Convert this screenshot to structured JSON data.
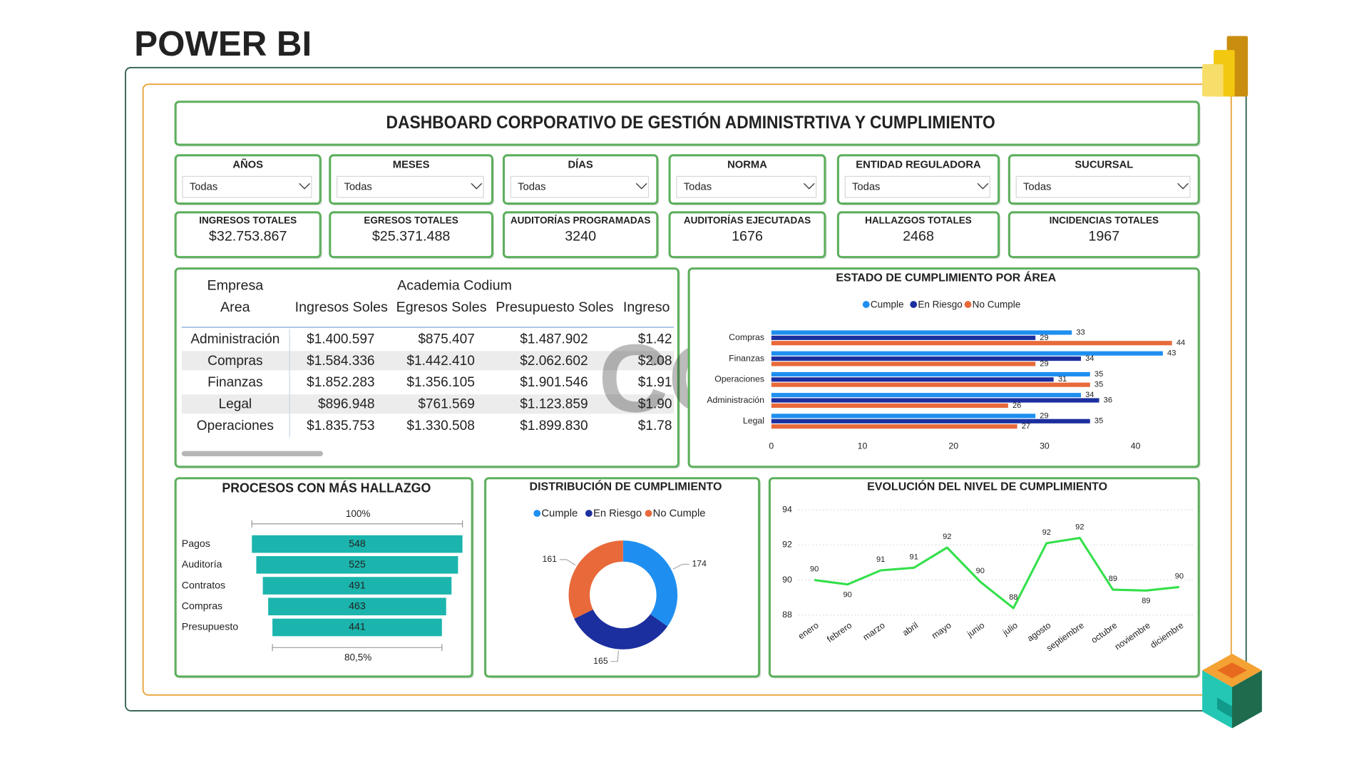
{
  "header": {
    "title": "POWER BI"
  },
  "dashboard": {
    "title": "DASHBOARD CORPORATIVO DE GESTIÓN ADMINISTRTIVA Y CUMPLIMIENTO"
  },
  "slicers": [
    {
      "label": "AÑOS",
      "value": "Todas"
    },
    {
      "label": "MESES",
      "value": "Todas"
    },
    {
      "label": "DÍAS",
      "value": "Todas"
    },
    {
      "label": "NORMA",
      "value": "Todas"
    },
    {
      "label": "ENTIDAD REGULADORA",
      "value": "Todas"
    },
    {
      "label": "SUCURSAL",
      "value": "Todas"
    }
  ],
  "kpis": [
    {
      "label": "INGRESOS TOTALES",
      "value": "$32.753.867"
    },
    {
      "label": "EGRESOS TOTALES",
      "value": "$25.371.488"
    },
    {
      "label": "AUDITORÍAS PROGRAMADAS",
      "value": "3240"
    },
    {
      "label": "AUDITORÍAS EJECUTADAS",
      "value": "1676"
    },
    {
      "label": "HALLAZGOS TOTALES",
      "value": "2468"
    },
    {
      "label": "INCIDENCIAS TOTALES",
      "value": "1967"
    }
  ],
  "table": {
    "header": [
      "Empresa",
      "Academia Codium"
    ],
    "columns": [
      "Area",
      "Ingresos Soles",
      "Egresos Soles",
      "Presupuesto Soles",
      "Ingreso"
    ],
    "rows": [
      [
        "Administración",
        "$1.400.597",
        "$875.407",
        "$1.487.902",
        "$1.42"
      ],
      [
        "Compras",
        "$1.584.336",
        "$1.442.410",
        "$2.062.602",
        "$2.08"
      ],
      [
        "Finanzas",
        "$1.852.283",
        "$1.356.105",
        "$1.901.546",
        "$1.91"
      ],
      [
        "Legal",
        "$896.948",
        "$761.569",
        "$1.123.859",
        "$1.90"
      ],
      [
        "Operaciones",
        "$1.835.753",
        "$1.330.508",
        "$1.899.830",
        "$1.78"
      ]
    ]
  },
  "watermark": "CODIUM",
  "chart_data": [
    {
      "type": "bar",
      "orientation": "horizontal",
      "title": "ESTADO DE CUMPLIMIENTO POR ÁREA",
      "categories": [
        "Compras",
        "Finanzas",
        "Operaciones",
        "Administración",
        "Legal"
      ],
      "series": [
        {
          "name": "Cumple",
          "color": "#1e8ff0",
          "values": [
            33,
            43,
            35,
            34,
            29
          ]
        },
        {
          "name": "En Riesgo",
          "color": "#1c2f9e",
          "values": [
            29,
            34,
            31,
            36,
            35
          ]
        },
        {
          "name": "No Cumple",
          "color": "#e8693a",
          "values": [
            44,
            29,
            35,
            26,
            27
          ]
        }
      ],
      "xlim": [
        0,
        45
      ],
      "xticks": [
        0,
        10,
        20,
        30,
        40
      ],
      "legend": "top"
    },
    {
      "type": "funnel",
      "title": "PROCESOS CON MÁS HALLAZGO",
      "categories": [
        "Pagos",
        "Auditoría",
        "Contratos",
        "Compras",
        "Presupuesto"
      ],
      "values": [
        548,
        525,
        491,
        463,
        441
      ],
      "color": "#1bb5ad",
      "top_label": "100%",
      "bottom_label": "80,5%"
    },
    {
      "type": "donut",
      "title": "DISTRIBUCIÓN DE CUMPLIMIENTO",
      "categories": [
        "Cumple",
        "En Riesgo",
        "No Cumple"
      ],
      "values": [
        174,
        165,
        161
      ],
      "colors": [
        "#1e8ff0",
        "#1c2f9e",
        "#e8693a"
      ],
      "legend": "top"
    },
    {
      "type": "line",
      "title": "EVOLUCIÓN DEL NIVEL DE CUMPLIMIENTO",
      "categories": [
        "enero",
        "febrero",
        "marzo",
        "abril",
        "mayo",
        "junio",
        "julio",
        "agosto",
        "septiembre",
        "octubre",
        "noviembre",
        "diciembre"
      ],
      "values": [
        90.0,
        89.75,
        90.55,
        90.7,
        91.85,
        89.9,
        88.4,
        92.1,
        92.4,
        89.45,
        89.4,
        89.6
      ],
      "value_labels": [
        "90",
        "90",
        "91",
        "91",
        "92",
        "90",
        "88",
        "92",
        "92",
        "89",
        "89",
        "90"
      ],
      "color": "#33e04a",
      "ylim": [
        88,
        94
      ],
      "yticks": [
        88,
        90,
        92,
        94
      ],
      "grid": true
    }
  ]
}
